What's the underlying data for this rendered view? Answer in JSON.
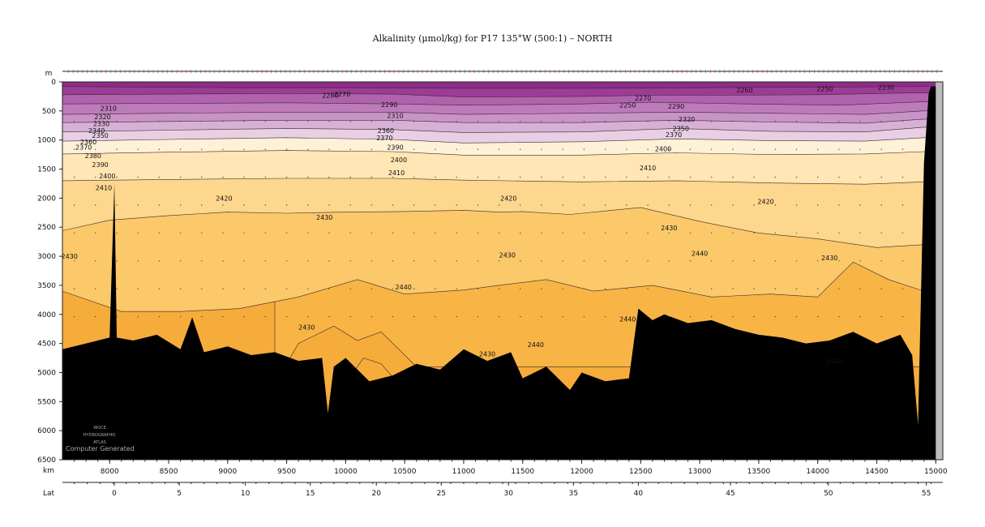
{
  "chart_data": {
    "type": "heatmap",
    "title": "Alkalinity (μmol/kg) for P17 135°W (500:1) – NORTH",
    "depth_axis": {
      "label": "m",
      "ticks": [
        0,
        500,
        1000,
        1500,
        2000,
        2500,
        3000,
        3500,
        4000,
        4500,
        5000,
        5500,
        6000,
        6500
      ],
      "range": [
        0,
        6500
      ]
    },
    "km_axis": {
      "label": "km",
      "ticks": [
        8000,
        8500,
        9000,
        9500,
        10000,
        10500,
        11000,
        11500,
        12000,
        12500,
        13000,
        13500,
        14000,
        14500,
        15000
      ],
      "range": [
        7600,
        15060
      ]
    },
    "lat_axis": {
      "label": "Lat",
      "ticks": [
        {
          "km": 8040,
          "label": "0"
        },
        {
          "km": 8590,
          "label": "5"
        },
        {
          "km": 9150,
          "label": "10"
        },
        {
          "km": 9700,
          "label": "15"
        },
        {
          "km": 10260,
          "label": "20"
        },
        {
          "km": 10810,
          "label": "25"
        },
        {
          "km": 11380,
          "label": "30"
        },
        {
          "km": 11930,
          "label": "35"
        },
        {
          "km": 12480,
          "label": "40"
        },
        {
          "km": 13260,
          "label": "45"
        },
        {
          "km": 14090,
          "label": "50"
        },
        {
          "km": 14920,
          "label": "55"
        }
      ]
    },
    "levels": [
      2220,
      2250,
      2270,
      2290,
      2310,
      2330,
      2350,
      2370,
      2390,
      2410,
      2420,
      2430,
      2440,
      2450
    ],
    "colors": [
      "#8c2d88",
      "#9d3c98",
      "#a850a5",
      "#b062ad",
      "#bd7bbb",
      "#c993c7",
      "#d7b1d5",
      "#e8cfe4",
      "#fff1d8",
      "#ffe6b4",
      "#fdd78d",
      "#fbc86a",
      "#f8b545",
      "#f5ac3a"
    ],
    "bands": [
      {
        "level": 2230,
        "depths": [
          [
            7600,
            80
          ],
          [
            9000,
            100
          ],
          [
            10000,
            100
          ],
          [
            11000,
            110
          ],
          [
            12000,
            110
          ],
          [
            13000,
            100
          ],
          [
            14000,
            90
          ],
          [
            15000,
            80
          ]
        ]
      },
      {
        "level": 2270,
        "depths": [
          [
            7600,
            220
          ],
          [
            8500,
            210
          ],
          [
            9500,
            200
          ],
          [
            10400,
            210
          ],
          [
            11000,
            260
          ],
          [
            12000,
            250
          ],
          [
            12600,
            230
          ],
          [
            13200,
            230
          ],
          [
            14000,
            220
          ],
          [
            14800,
            190
          ]
        ]
      },
      {
        "level": 2300,
        "depths": [
          [
            7600,
            380
          ],
          [
            8500,
            370
          ],
          [
            9500,
            360
          ],
          [
            10400,
            380
          ],
          [
            11000,
            400
          ],
          [
            12000,
            380
          ],
          [
            12600,
            350
          ],
          [
            13400,
            380
          ],
          [
            14200,
            400
          ],
          [
            14900,
            340
          ]
        ]
      },
      {
        "level": 2320,
        "depths": [
          [
            7600,
            560
          ],
          [
            8500,
            540
          ],
          [
            9500,
            520
          ],
          [
            10400,
            520
          ],
          [
            11000,
            560
          ],
          [
            12000,
            540
          ],
          [
            12800,
            520
          ],
          [
            13600,
            540
          ],
          [
            14400,
            560
          ],
          [
            14900,
            500
          ]
        ]
      },
      {
        "level": 2340,
        "depths": [
          [
            7600,
            700
          ],
          [
            8500,
            680
          ],
          [
            9500,
            660
          ],
          [
            10400,
            660
          ],
          [
            11000,
            700
          ],
          [
            12000,
            700
          ],
          [
            12800,
            660
          ],
          [
            13600,
            690
          ],
          [
            14400,
            710
          ],
          [
            14900,
            640
          ]
        ]
      },
      {
        "level": 2360,
        "depths": [
          [
            7600,
            860
          ],
          [
            8500,
            830
          ],
          [
            9500,
            800
          ],
          [
            10400,
            820
          ],
          [
            11000,
            870
          ],
          [
            12000,
            860
          ],
          [
            12800,
            800
          ],
          [
            13600,
            850
          ],
          [
            14400,
            860
          ],
          [
            14900,
            780
          ]
        ]
      },
      {
        "level": 2380,
        "depths": [
          [
            7600,
            1020
          ],
          [
            8500,
            990
          ],
          [
            9500,
            960
          ],
          [
            10400,
            990
          ],
          [
            11000,
            1050
          ],
          [
            12000,
            1030
          ],
          [
            12800,
            980
          ],
          [
            13600,
            1010
          ],
          [
            14400,
            1020
          ],
          [
            14900,
            960
          ]
        ]
      },
      {
        "level": 2400,
        "depths": [
          [
            7600,
            1240
          ],
          [
            8500,
            1210
          ],
          [
            9500,
            1180
          ],
          [
            10400,
            1200
          ],
          [
            11000,
            1260
          ],
          [
            12000,
            1260
          ],
          [
            12800,
            1220
          ],
          [
            13600,
            1250
          ],
          [
            14400,
            1240
          ],
          [
            14900,
            1200
          ]
        ]
      },
      {
        "level": 2415,
        "depths": [
          [
            7600,
            1700
          ],
          [
            8500,
            1680
          ],
          [
            9500,
            1660
          ],
          [
            10400,
            1660
          ],
          [
            11000,
            1690
          ],
          [
            12000,
            1720
          ],
          [
            12800,
            1700
          ],
          [
            13600,
            1740
          ],
          [
            14400,
            1760
          ],
          [
            14900,
            1720
          ]
        ]
      },
      {
        "level": 2425,
        "depths": [
          [
            7600,
            2560
          ],
          [
            8000,
            2380
          ],
          [
            8500,
            2300
          ],
          [
            9000,
            2240
          ],
          [
            9500,
            2260
          ],
          [
            10000,
            2240
          ],
          [
            10500,
            2230
          ],
          [
            11000,
            2210
          ],
          [
            11300,
            2240
          ],
          [
            11500,
            2230
          ],
          [
            11900,
            2280
          ],
          [
            12500,
            2160
          ],
          [
            13000,
            2400
          ],
          [
            13500,
            2600
          ],
          [
            14000,
            2700
          ],
          [
            14500,
            2850
          ],
          [
            14900,
            2800
          ]
        ]
      },
      {
        "level": 2435,
        "depths": [
          [
            7600,
            3600
          ],
          [
            8100,
            3950
          ],
          [
            8600,
            3950
          ],
          [
            9100,
            3900
          ],
          [
            9600,
            3700
          ],
          [
            10100,
            3400
          ],
          [
            10500,
            3650
          ],
          [
            11000,
            3580
          ],
          [
            11300,
            3500
          ],
          [
            11700,
            3400
          ],
          [
            12100,
            3600
          ],
          [
            12600,
            3500
          ],
          [
            13100,
            3700
          ],
          [
            13600,
            3650
          ],
          [
            14000,
            3700
          ],
          [
            14300,
            3100
          ],
          [
            14600,
            3400
          ],
          [
            14900,
            3600
          ]
        ]
      },
      {
        "level": 2445,
        "depths": [
          [
            9400,
            5200
          ],
          [
            9600,
            4500
          ],
          [
            9900,
            4200
          ],
          [
            10100,
            4450
          ],
          [
            10300,
            4300
          ],
          [
            10600,
            4900
          ]
        ]
      },
      {
        "level": 2450,
        "depths": [
          [
            10000,
            5200
          ],
          [
            10150,
            4750
          ],
          [
            10300,
            4850
          ],
          [
            10450,
            5200
          ]
        ]
      }
    ],
    "seafloor": [
      [
        7600,
        4600
      ],
      [
        7800,
        4500
      ],
      [
        8000,
        4400
      ],
      [
        8040,
        1750
      ],
      [
        8060,
        4400
      ],
      [
        8200,
        4450
      ],
      [
        8400,
        4350
      ],
      [
        8600,
        4600
      ],
      [
        8700,
        4050
      ],
      [
        8800,
        4650
      ],
      [
        9000,
        4550
      ],
      [
        9200,
        4700
      ],
      [
        9400,
        4650
      ],
      [
        9600,
        4800
      ],
      [
        9800,
        4750
      ],
      [
        9850,
        5700
      ],
      [
        9900,
        4900
      ],
      [
        10000,
        4750
      ],
      [
        10200,
        5150
      ],
      [
        10400,
        5050
      ],
      [
        10600,
        4850
      ],
      [
        10800,
        4950
      ],
      [
        11000,
        4600
      ],
      [
        11200,
        4800
      ],
      [
        11400,
        4650
      ],
      [
        11500,
        5100
      ],
      [
        11700,
        4900
      ],
      [
        11900,
        5300
      ],
      [
        12000,
        5000
      ],
      [
        12200,
        5150
      ],
      [
        12400,
        5100
      ],
      [
        12480,
        3900
      ],
      [
        12600,
        4100
      ],
      [
        12700,
        4000
      ],
      [
        12900,
        4150
      ],
      [
        13100,
        4100
      ],
      [
        13300,
        4250
      ],
      [
        13500,
        4350
      ],
      [
        13700,
        4400
      ],
      [
        13900,
        4500
      ],
      [
        14100,
        4450
      ],
      [
        14300,
        4300
      ],
      [
        14500,
        4500
      ],
      [
        14700,
        4350
      ],
      [
        14800,
        4700
      ],
      [
        14850,
        5900
      ],
      [
        14900,
        1400
      ],
      [
        14940,
        200
      ],
      [
        14960,
        80
      ],
      [
        15000,
        80
      ],
      [
        15060,
        80
      ]
    ],
    "contour_labels": [
      {
        "km": 7660,
        "depth": 3000,
        "text": "2430"
      },
      {
        "km": 7990,
        "depth": 450,
        "text": "2310"
      },
      {
        "km": 7940,
        "depth": 600,
        "text": "2320"
      },
      {
        "km": 7930,
        "depth": 720,
        "text": "2330"
      },
      {
        "km": 7890,
        "depth": 840,
        "text": "2340"
      },
      {
        "km": 7920,
        "depth": 920,
        "text": "2350"
      },
      {
        "km": 7820,
        "depth": 1030,
        "text": "2360"
      },
      {
        "km": 7780,
        "depth": 1120,
        "text": "2370"
      },
      {
        "km": 7860,
        "depth": 1270,
        "text": "2380"
      },
      {
        "km": 7920,
        "depth": 1420,
        "text": "2390"
      },
      {
        "km": 7980,
        "depth": 1620,
        "text": "2400"
      },
      {
        "km": 7950,
        "depth": 1820,
        "text": "2410"
      },
      {
        "km": 8970,
        "depth": 2000,
        "text": "2420"
      },
      {
        "km": 9820,
        "depth": 2330,
        "text": "2430"
      },
      {
        "km": 10490,
        "depth": 3530,
        "text": "2440"
      },
      {
        "km": 9670,
        "depth": 4220,
        "text": "2430"
      },
      {
        "km": 9870,
        "depth": 230,
        "text": "2280"
      },
      {
        "km": 9970,
        "depth": 210,
        "text": "2270"
      },
      {
        "km": 10370,
        "depth": 390,
        "text": "2290"
      },
      {
        "km": 10420,
        "depth": 580,
        "text": "2310"
      },
      {
        "km": 10340,
        "depth": 840,
        "text": "2360"
      },
      {
        "km": 10330,
        "depth": 960,
        "text": "2370"
      },
      {
        "km": 10420,
        "depth": 1120,
        "text": "2390"
      },
      {
        "km": 10450,
        "depth": 1340,
        "text": "2400"
      },
      {
        "km": 10430,
        "depth": 1560,
        "text": "2410"
      },
      {
        "km": 11380,
        "depth": 2000,
        "text": "2420"
      },
      {
        "km": 11370,
        "depth": 2980,
        "text": "2430"
      },
      {
        "km": 11610,
        "depth": 4520,
        "text": "2440"
      },
      {
        "km": 11200,
        "depth": 4680,
        "text": "2430"
      },
      {
        "km": 12390,
        "depth": 400,
        "text": "2250"
      },
      {
        "km": 12520,
        "depth": 280,
        "text": "2270"
      },
      {
        "km": 12800,
        "depth": 420,
        "text": "2290"
      },
      {
        "km": 12890,
        "depth": 640,
        "text": "2320"
      },
      {
        "km": 12840,
        "depth": 800,
        "text": "2350"
      },
      {
        "km": 12780,
        "depth": 910,
        "text": "2370"
      },
      {
        "km": 12690,
        "depth": 1150,
        "text": "2400"
      },
      {
        "km": 12560,
        "depth": 1480,
        "text": "2410"
      },
      {
        "km": 12740,
        "depth": 2510,
        "text": "2430"
      },
      {
        "km": 13000,
        "depth": 2950,
        "text": "2440"
      },
      {
        "km": 12390,
        "depth": 4080,
        "text": "2440"
      },
      {
        "km": 13380,
        "depth": 140,
        "text": "2260"
      },
      {
        "km": 14060,
        "depth": 120,
        "text": "2250"
      },
      {
        "km": 14580,
        "depth": 90,
        "text": "2230"
      },
      {
        "km": 13560,
        "depth": 2060,
        "text": "2420"
      },
      {
        "km": 14100,
        "depth": 3030,
        "text": "2430"
      },
      {
        "km": 14140,
        "depth": 4800,
        "text": "2440"
      }
    ],
    "watermark": [
      "WOCE",
      "HYDROGRAPHIC",
      "ATLAS",
      "Computer Generated"
    ]
  }
}
